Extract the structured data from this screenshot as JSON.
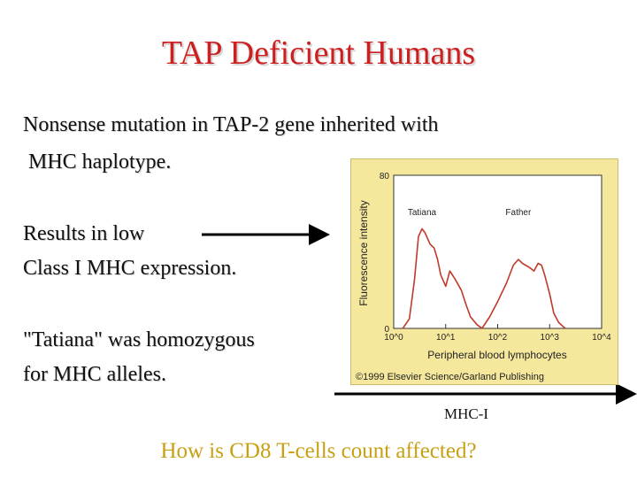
{
  "slide": {
    "title": "TAP Deficient Humans",
    "lines": [
      "Nonsense mutation in TAP-2 gene inherited with",
      " MHC haplotype.",
      "Results in low",
      "Class I MHC expression.",
      "\"Tatiana\" was homozygous",
      "for MHC alleles."
    ],
    "axis_annotation": "MHC-I",
    "question": "How is CD8 T-cells count affected?"
  },
  "colors": {
    "title": "#cc1f1f",
    "question": "#c8a012",
    "figure_bg": "#f5e89d",
    "trace": "#c0392b"
  },
  "figure": {
    "credit": "©1999 Elsevier Science/Garland Publishing"
  },
  "chart_data": {
    "type": "line",
    "title": "",
    "xlabel": "Peripheral blood lymphocytes",
    "ylabel": "Fluorescence intensity",
    "x_scale": "log",
    "xlim": [
      1,
      10000
    ],
    "ylim": [
      0,
      80
    ],
    "x_ticks": [
      "10^0",
      "10^1",
      "10^2",
      "10^3",
      "10^4"
    ],
    "y_ticks": [
      "0",
      "80"
    ],
    "peak_labels": [
      "Tatiana",
      "Father"
    ],
    "series": [
      {
        "name": "Tatiana",
        "x": [
          1.5,
          2,
          2.5,
          3,
          3.5,
          4,
          5,
          6,
          7,
          8,
          10,
          12,
          15,
          20,
          25,
          30,
          40,
          50
        ],
        "values": [
          0,
          5,
          25,
          48,
          52,
          50,
          44,
          42,
          36,
          28,
          22,
          30,
          26,
          20,
          12,
          6,
          2,
          0
        ]
      },
      {
        "name": "Father",
        "x": [
          50,
          70,
          100,
          150,
          200,
          250,
          300,
          400,
          500,
          600,
          700,
          800,
          1000,
          1200,
          1500,
          2000
        ],
        "values": [
          0,
          6,
          14,
          24,
          33,
          36,
          34,
          32,
          30,
          34,
          33,
          28,
          18,
          8,
          3,
          0
        ]
      }
    ]
  }
}
